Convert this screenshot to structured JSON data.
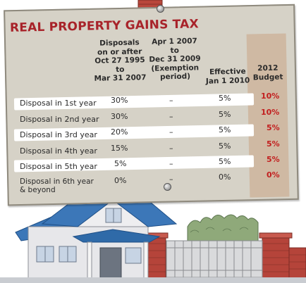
{
  "title": "REAL PROPERTY GAINS TAX",
  "columns": [
    "Disposals on or after Oct 27 1995 to Mar 31 2007",
    "Apr 1 2007 to Dec 31 2009 (Exemption period)",
    "Effective Jan 1 2010",
    "2012 Budget"
  ],
  "column_lines": [
    [
      "Disposals",
      "on or after",
      "Oct 27 1995",
      "to",
      "Mar 31 2007"
    ],
    [
      "Apr 1 2007",
      "to",
      "Dec 31 2009",
      "(Exemption",
      "period)"
    ],
    [
      "Effective",
      "Jan 1 2010"
    ],
    [
      "2012",
      "Budget"
    ]
  ],
  "rows": [
    {
      "label": "Disposal in 1st year",
      "v1": "30%",
      "v2": "–",
      "v3": "5%",
      "v4": "10%"
    },
    {
      "label": "Disposal in 2nd year",
      "v1": "30%",
      "v2": "–",
      "v3": "5%",
      "v4": "10%"
    },
    {
      "label": "Disposal in 3rd year",
      "v1": "20%",
      "v2": "–",
      "v3": "5%",
      "v4": "5%"
    },
    {
      "label": "Disposal in 4th year",
      "v1": "15%",
      "v2": "–",
      "v3": "5%",
      "v4": "5%"
    },
    {
      "label": "Disposal in 5th year",
      "v1": "5%",
      "v2": "–",
      "v3": "5%",
      "v4": "5%"
    },
    {
      "label": "Disposal in 6th year & beyond",
      "label_lines": [
        "Disposal in 6th year",
        "& beyond"
      ],
      "v1": "0%",
      "v2": "–",
      "v3": "0%",
      "v4": "0%"
    }
  ],
  "colors": {
    "title": "#a8232a",
    "budget_values": "#c21e1e",
    "board": "#d6d2c7",
    "roof": "#3c77b8",
    "wall": "#e7e7ea",
    "brick": "#b5443a",
    "hedge": "#7f9b6a"
  },
  "icons": [
    "push-pin-icon",
    "brick-chimney",
    "house-illustration",
    "metal-gate",
    "brick-pillar",
    "garden-hedge"
  ]
}
